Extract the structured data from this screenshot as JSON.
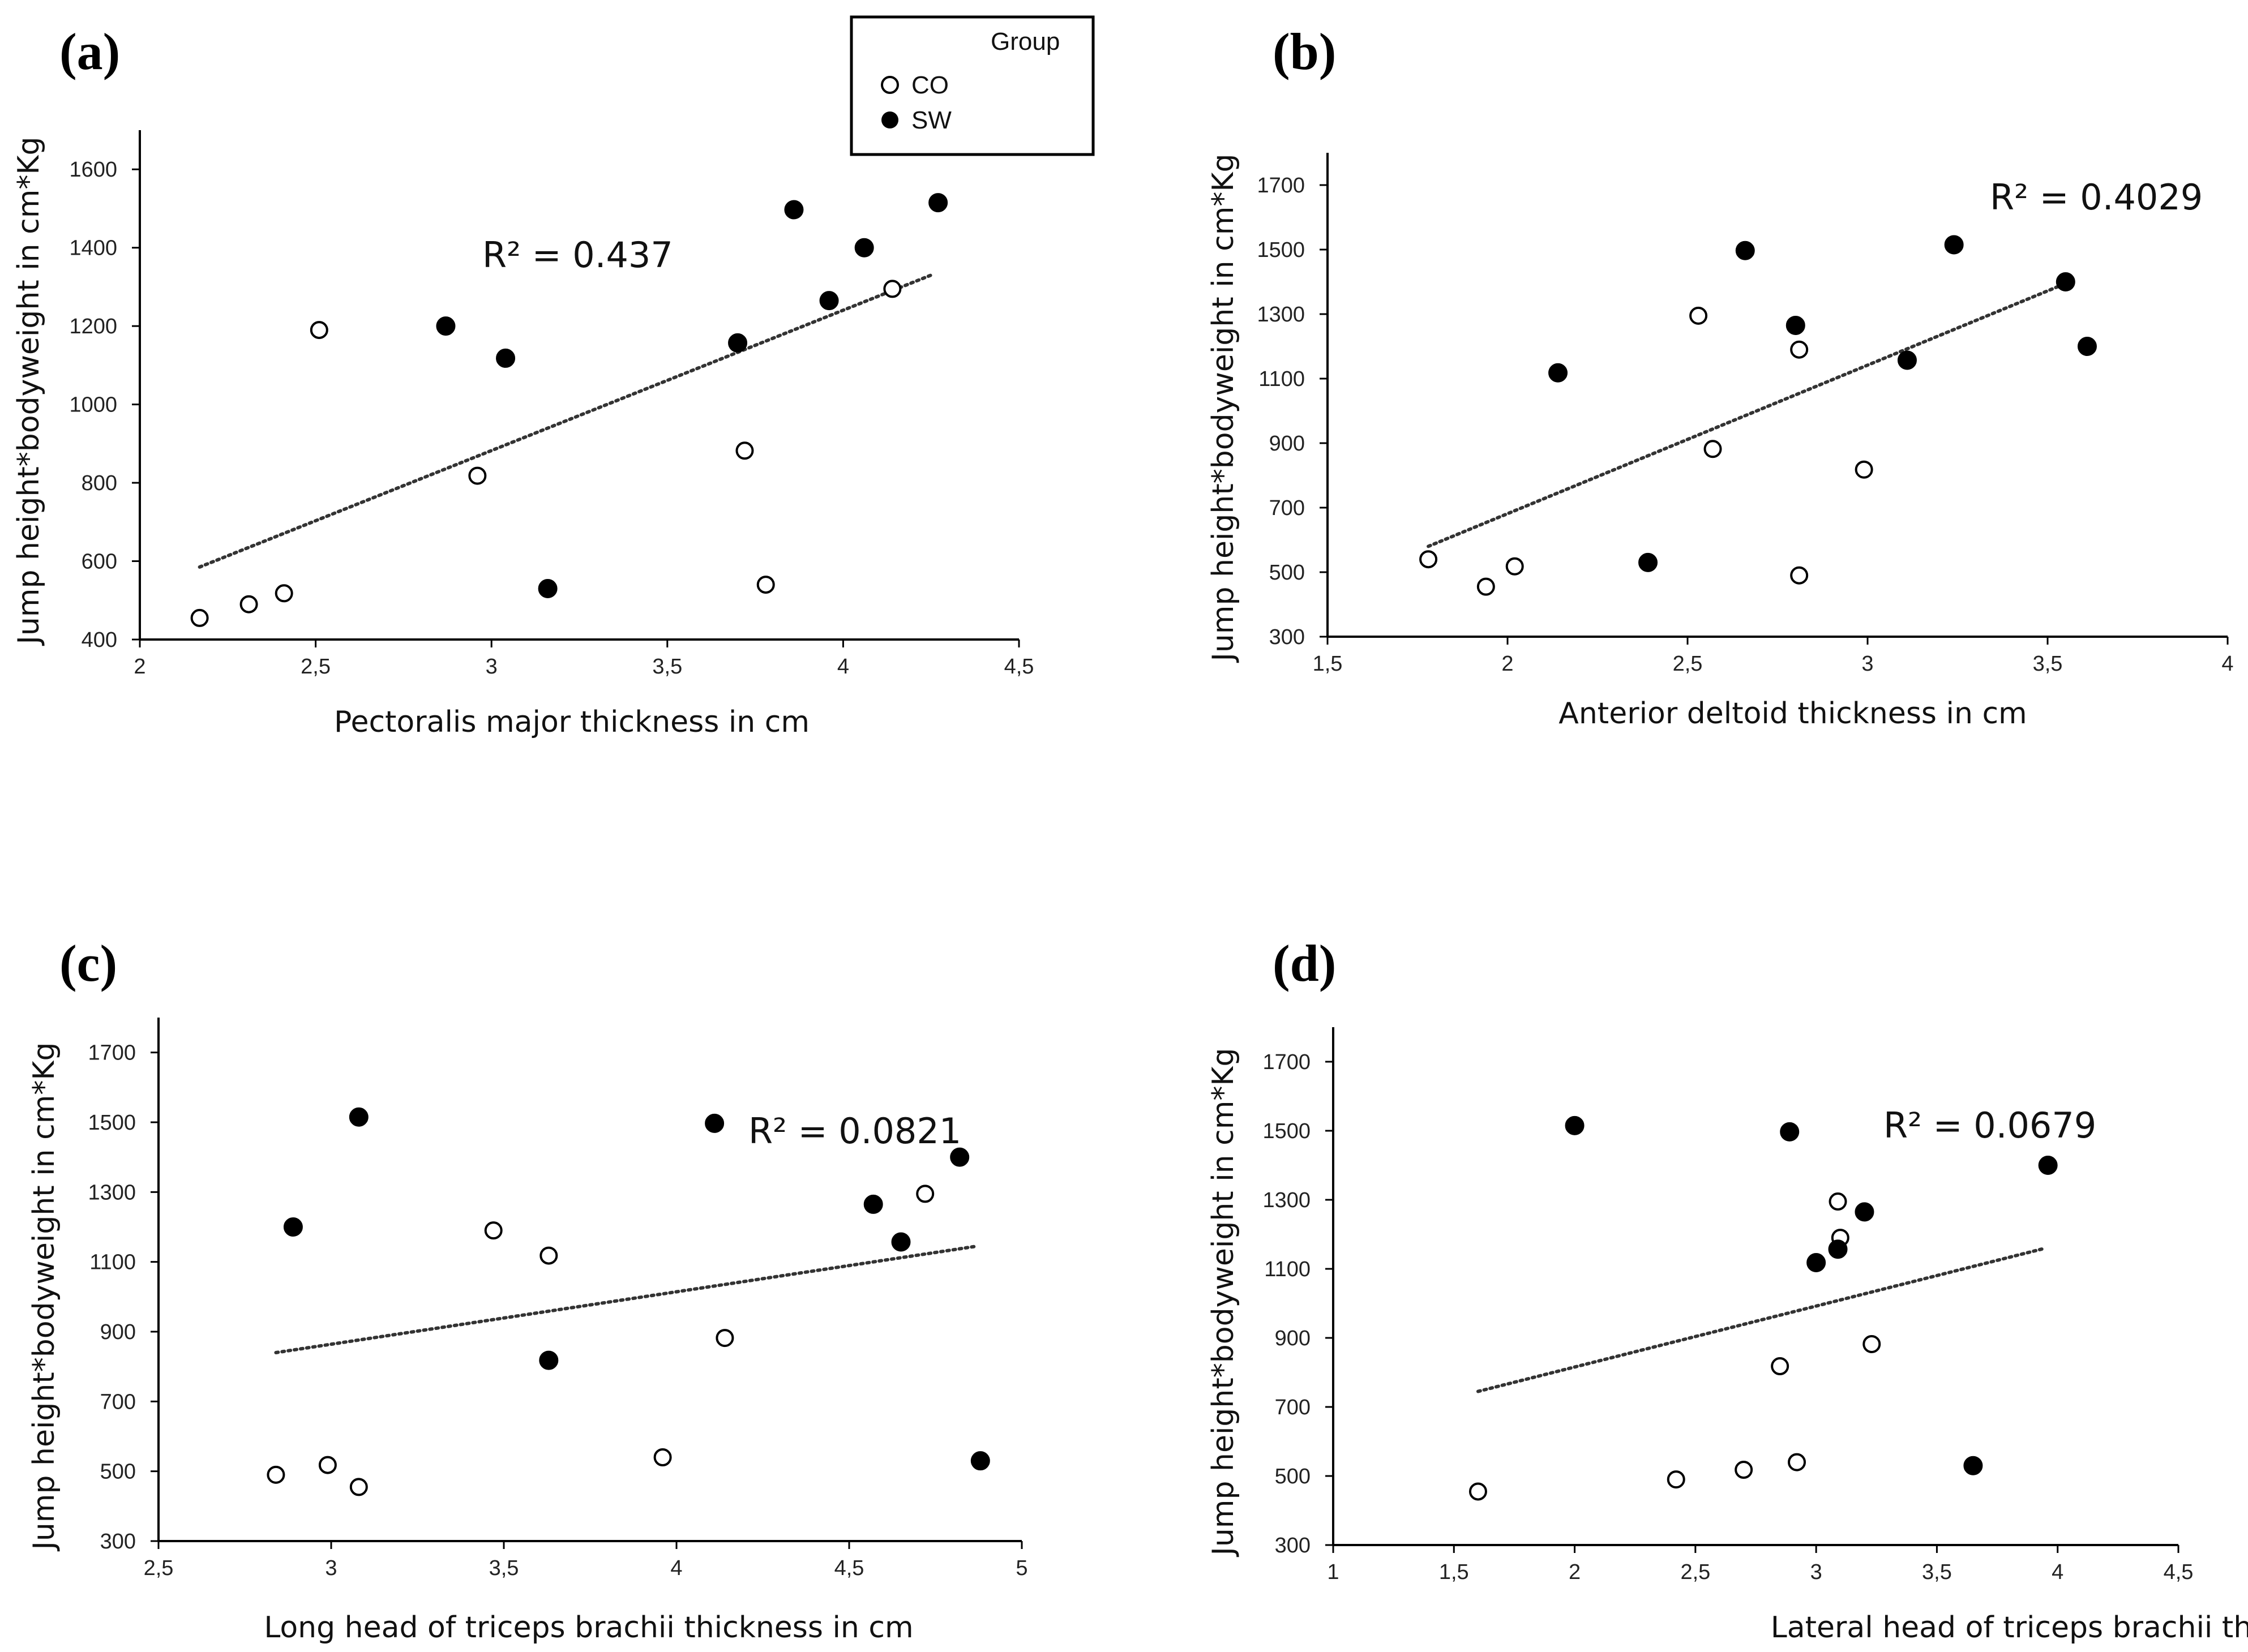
{
  "chart_data": [
    {
      "type": "scatter",
      "panel": "(a)",
      "title": "",
      "xlabel": "Pectoralis major thickness in cm",
      "ylabel": "Jump height*bodyweight in cm*Kg",
      "xlim": [
        2,
        4.5
      ],
      "ylim": [
        400,
        1700
      ],
      "xticks": [
        2,
        2.5,
        3,
        3.5,
        4,
        4.5
      ],
      "xtick_labels": [
        "2",
        "2,5",
        "3",
        "3,5",
        "4",
        "4,5"
      ],
      "yticks": [
        400,
        600,
        800,
        1000,
        1200,
        1400,
        1600
      ],
      "ytick_labels": [
        "400",
        "600",
        "800",
        "1000",
        "1200",
        "1400",
        "1600"
      ],
      "r2_label": "R² = 0.437",
      "trendline": {
        "x": [
          2.17,
          4.25
        ],
        "y": [
          585,
          1330
        ]
      },
      "series": [
        {
          "name": "CO",
          "points": [
            [
              2.17,
              455
            ],
            [
              2.31,
              490
            ],
            [
              2.41,
              518
            ],
            [
              2.51,
              1190
            ],
            [
              2.96,
              818
            ],
            [
              3.72,
              882
            ],
            [
              3.78,
              540
            ],
            [
              4.14,
              1295
            ]
          ]
        },
        {
          "name": "SW",
          "points": [
            [
              2.87,
              1200
            ],
            [
              3.04,
              1118
            ],
            [
              3.16,
              530
            ],
            [
              3.7,
              1157
            ],
            [
              3.86,
              1497
            ],
            [
              3.96,
              1265
            ],
            [
              4.06,
              1400
            ],
            [
              4.27,
              1515
            ]
          ]
        }
      ]
    },
    {
      "type": "scatter",
      "panel": "(b)",
      "title": "",
      "xlabel": "Anterior deltoid thickness in cm",
      "ylabel": "Jump height*bodyweight in cm*Kg",
      "xlim": [
        1.5,
        4
      ],
      "ylim": [
        300,
        1800
      ],
      "xticks": [
        1.5,
        2,
        2.5,
        3,
        3.5,
        4
      ],
      "xtick_labels": [
        "1,5",
        "2",
        "2,5",
        "3",
        "3,5",
        "4"
      ],
      "yticks": [
        300,
        500,
        700,
        900,
        1100,
        1300,
        1500,
        1700
      ],
      "ytick_labels": [
        "300",
        "500",
        "700",
        "900",
        "1100",
        "1300",
        "1500",
        "1700"
      ],
      "r2_label": "R² = 0.4029",
      "trendline": {
        "x": [
          1.78,
          3.55
        ],
        "y": [
          580,
          1395
        ]
      },
      "series": [
        {
          "name": "CO",
          "points": [
            [
              1.78,
              540
            ],
            [
              1.94,
              455
            ],
            [
              2.02,
              518
            ],
            [
              2.53,
              1295
            ],
            [
              2.57,
              882
            ],
            [
              2.81,
              1190
            ],
            [
              2.81,
              490
            ],
            [
              2.99,
              818
            ]
          ]
        },
        {
          "name": "SW",
          "points": [
            [
              2.14,
              1118
            ],
            [
              2.39,
              530
            ],
            [
              2.66,
              1497
            ],
            [
              2.8,
              1265
            ],
            [
              3.11,
              1157
            ],
            [
              3.24,
              1515
            ],
            [
              3.55,
              1400
            ],
            [
              3.61,
              1200
            ]
          ]
        }
      ]
    },
    {
      "type": "scatter",
      "panel": "(c)",
      "title": "",
      "xlabel": "Long head of triceps brachii thickness in cm",
      "ylabel": "Jump height*bodyweight in cm*Kg",
      "xlim": [
        2.5,
        5
      ],
      "ylim": [
        300,
        1800
      ],
      "xticks": [
        2.5,
        3,
        3.5,
        4,
        4.5,
        5
      ],
      "xtick_labels": [
        "2,5",
        "3",
        "3,5",
        "4",
        "4,5",
        "5"
      ],
      "yticks": [
        300,
        500,
        700,
        900,
        1100,
        1300,
        1500,
        1700
      ],
      "ytick_labels": [
        "300",
        "500",
        "700",
        "900",
        "1100",
        "1300",
        "1500",
        "1700"
      ],
      "r2_label": "R² = 0.0821",
      "trendline": {
        "x": [
          2.84,
          4.87
        ],
        "y": [
          840,
          1145
        ]
      },
      "series": [
        {
          "name": "CO",
          "points": [
            [
              2.84,
              490
            ],
            [
              2.99,
              518
            ],
            [
              3.08,
              455
            ],
            [
              3.47,
              1190
            ],
            [
              3.63,
              1118
            ],
            [
              3.96,
              540
            ],
            [
              4.14,
              882
            ],
            [
              4.72,
              1295
            ]
          ]
        },
        {
          "name": "SW",
          "points": [
            [
              2.89,
              1200
            ],
            [
              3.08,
              1515
            ],
            [
              3.63,
              818
            ],
            [
              4.11,
              1497
            ],
            [
              4.57,
              1265
            ],
            [
              4.65,
              1157
            ],
            [
              4.82,
              1400
            ],
            [
              4.88,
              530
            ]
          ]
        }
      ]
    },
    {
      "type": "scatter",
      "panel": "(d)",
      "title": "",
      "xlabel": "Lateral head of triceps brachii thickness in cm",
      "ylabel": "Jump height*bodyweight in cm*Kg",
      "xlim": [
        1,
        4.5
      ],
      "ylim": [
        300,
        1800
      ],
      "xticks": [
        1,
        1.5,
        2,
        2.5,
        3,
        3.5,
        4,
        4.5
      ],
      "xtick_labels": [
        "1",
        "1,5",
        "2",
        "2,5",
        "3",
        "3,5",
        "4",
        "4,5"
      ],
      "yticks": [
        300,
        500,
        700,
        900,
        1100,
        1300,
        1500,
        1700
      ],
      "ytick_labels": [
        "300",
        "500",
        "700",
        "900",
        "1100",
        "1300",
        "1500",
        "1700"
      ],
      "r2_label": "R² = 0.0679",
      "trendline": {
        "x": [
          1.6,
          3.95
        ],
        "y": [
          745,
          1160
        ]
      },
      "series": [
        {
          "name": "CO",
          "points": [
            [
              1.6,
              455
            ],
            [
              2.42,
              490
            ],
            [
              2.7,
              518
            ],
            [
              2.85,
              818
            ],
            [
              2.92,
              540
            ],
            [
              3.09,
              1295
            ],
            [
              3.1,
              1190
            ],
            [
              3.23,
              882
            ]
          ]
        },
        {
          "name": "SW",
          "points": [
            [
              2.0,
              1515
            ],
            [
              2.89,
              1497
            ],
            [
              3.0,
              1118
            ],
            [
              3.09,
              1157
            ],
            [
              3.2,
              1265
            ],
            [
              3.65,
              530
            ],
            [
              3.96,
              1400
            ]
          ]
        }
      ]
    }
  ],
  "legend": {
    "title": "Group",
    "entries": [
      {
        "label": "CO",
        "marker": "open-circle"
      },
      {
        "label": "SW",
        "marker": "filled-circle"
      }
    ]
  },
  "colors": {
    "axis": "#000000",
    "marker": "#000000",
    "trendline": "#333333"
  }
}
